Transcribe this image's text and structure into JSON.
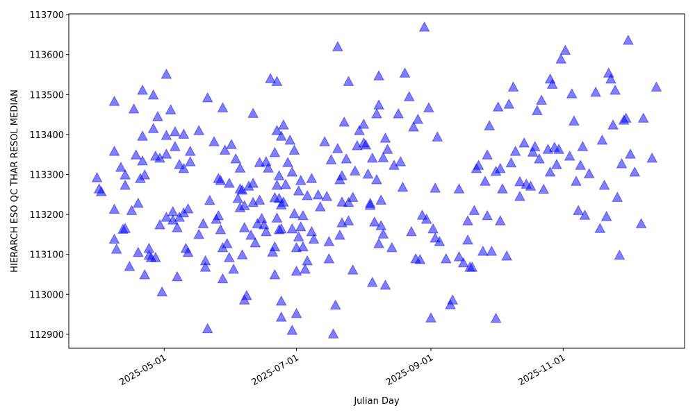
{
  "chart_data": {
    "type": "scatter",
    "xlabel": "Julian Day",
    "ylabel": "HIERARCH ESO QC THAR RESOL MEDIAN",
    "color": "#0000ff",
    "xlim": [
      "2025-03-18",
      "2025-12-27"
    ],
    "xticks": [
      "2025-05-01",
      "2025-07-01",
      "2025-09-01",
      "2025-11-01"
    ],
    "ylim": [
      112865,
      113702
    ],
    "yticks": [
      112900,
      113000,
      113100,
      113200,
      113300,
      113400,
      113500,
      113600,
      113700
    ],
    "x": [
      "2025-03-31",
      "2025-04-01",
      "2025-04-02",
      "2025-04-08",
      "2025-04-08",
      "2025-04-08",
      "2025-04-08",
      "2025-04-09",
      "2025-04-11",
      "2025-04-12",
      "2025-04-13",
      "2025-04-13",
      "2025-04-13",
      "2025-04-15",
      "2025-04-16",
      "2025-04-17",
      "2025-04-18",
      "2025-04-19",
      "2025-04-19",
      "2025-04-20",
      "2025-04-21",
      "2025-04-21",
      "2025-04-21",
      "2025-04-22",
      "2025-04-22",
      "2025-04-24",
      "2025-04-24",
      "2025-04-25",
      "2025-04-26",
      "2025-04-26",
      "2025-04-27",
      "2025-04-27",
      "2025-04-28",
      "2025-04-29",
      "2025-04-29",
      "2025-04-30",
      "2025-05-02",
      "2025-05-02",
      "2025-05-02",
      "2025-05-02",
      "2025-05-04",
      "2025-05-05",
      "2025-05-05",
      "2025-05-06",
      "2025-05-06",
      "2025-05-07",
      "2025-05-07",
      "2025-05-08",
      "2025-05-08",
      "2025-05-10",
      "2025-05-10",
      "2025-05-10",
      "2025-05-11",
      "2025-05-12",
      "2025-05-12",
      "2025-05-13",
      "2025-05-13",
      "2025-05-17",
      "2025-05-17",
      "2025-05-19",
      "2025-05-20",
      "2025-05-20",
      "2025-05-21",
      "2025-05-21",
      "2025-05-22",
      "2025-05-24",
      "2025-05-25",
      "2025-05-26",
      "2025-05-26",
      "2025-05-27",
      "2025-05-27",
      "2025-05-28",
      "2025-05-28",
      "2025-05-28",
      "2025-05-29",
      "2025-05-30",
      "2025-05-31",
      "2025-05-31",
      "2025-06-01",
      "2025-06-02",
      "2025-06-03",
      "2025-06-04",
      "2025-06-05",
      "2025-06-05",
      "2025-06-05",
      "2025-06-06",
      "2025-06-06",
      "2025-06-07",
      "2025-06-07",
      "2025-06-07",
      "2025-06-08",
      "2025-06-09",
      "2025-06-10",
      "2025-06-11",
      "2025-06-11",
      "2025-06-11",
      "2025-06-12",
      "2025-06-13",
      "2025-06-14",
      "2025-06-15",
      "2025-06-14",
      "2025-06-16",
      "2025-06-17",
      "2025-06-17",
      "2025-06-18",
      "2025-06-19",
      "2025-06-20",
      "2025-06-21",
      "2025-06-21",
      "2025-06-21",
      "2025-06-21",
      "2025-06-22",
      "2025-06-22",
      "2025-06-22",
      "2025-06-22",
      "2025-06-23",
      "2025-06-23",
      "2025-06-23",
      "2025-06-24",
      "2025-06-24",
      "2025-06-24",
      "2025-06-24",
      "2025-06-24",
      "2025-06-25",
      "2025-06-25",
      "2025-06-26",
      "2025-06-27",
      "2025-06-28",
      "2025-06-29",
      "2025-06-29",
      "2025-06-29",
      "2025-06-30",
      "2025-06-30",
      "2025-07-01",
      "2025-07-01",
      "2025-07-01",
      "2025-07-02",
      "2025-07-02",
      "2025-07-03",
      "2025-07-03",
      "2025-07-04",
      "2025-07-04",
      "2025-07-05",
      "2025-07-06",
      "2025-07-06",
      "2025-07-08",
      "2025-07-08",
      "2025-07-09",
      "2025-07-11",
      "2025-07-12",
      "2025-07-14",
      "2025-07-15",
      "2025-07-16",
      "2025-07-16",
      "2025-07-17",
      "2025-07-18",
      "2025-07-19",
      "2025-07-20",
      "2025-07-20",
      "2025-07-21",
      "2025-07-21",
      "2025-07-22",
      "2025-07-22",
      "2025-07-22",
      "2025-07-23",
      "2025-07-24",
      "2025-07-25",
      "2025-07-25",
      "2025-07-25",
      "2025-07-27",
      "2025-07-27",
      "2025-07-28",
      "2025-07-29",
      "2025-07-30",
      "2025-08-01",
      "2025-08-01",
      "2025-08-02",
      "2025-08-03",
      "2025-08-04",
      "2025-08-04",
      "2025-08-05",
      "2025-08-05",
      "2025-08-06",
      "2025-08-07",
      "2025-08-07",
      "2025-08-08",
      "2025-08-08",
      "2025-08-08",
      "2025-08-09",
      "2025-08-09",
      "2025-08-10",
      "2025-08-10",
      "2025-08-11",
      "2025-08-11",
      "2025-08-12",
      "2025-08-14",
      "2025-08-15",
      "2025-08-17",
      "2025-08-18",
      "2025-08-19",
      "2025-08-20",
      "2025-08-22",
      "2025-08-23",
      "2025-08-24",
      "2025-08-25",
      "2025-08-26",
      "2025-08-27",
      "2025-08-28",
      "2025-08-29",
      "2025-08-30",
      "2025-08-31",
      "2025-09-01",
      "2025-09-02",
      "2025-09-03",
      "2025-09-03",
      "2025-09-04",
      "2025-09-05",
      "2025-09-08",
      "2025-09-10",
      "2025-09-11",
      "2025-09-14",
      "2025-09-14",
      "2025-09-16",
      "2025-09-18",
      "2025-09-18",
      "2025-09-19",
      "2025-09-20",
      "2025-09-21",
      "2025-09-22",
      "2025-09-23",
      "2025-09-25",
      "2025-09-26",
      "2025-09-27",
      "2025-09-27",
      "2025-09-28",
      "2025-09-29",
      "2025-10-01",
      "2025-10-01",
      "2025-10-02",
      "2025-10-03",
      "2025-10-03",
      "2025-10-04",
      "2025-10-06",
      "2025-10-07",
      "2025-10-08",
      "2025-10-09",
      "2025-10-10",
      "2025-10-12",
      "2025-10-12",
      "2025-10-14",
      "2025-10-15",
      "2025-10-17",
      "2025-10-18",
      "2025-10-19",
      "2025-10-20",
      "2025-10-21",
      "2025-10-22",
      "2025-10-23",
      "2025-10-25",
      "2025-10-26",
      "2025-10-26",
      "2025-10-27",
      "2025-10-28",
      "2025-10-29",
      "2025-10-30",
      "2025-10-31",
      "2025-11-02",
      "2025-11-04",
      "2025-11-05",
      "2025-11-06",
      "2025-11-07",
      "2025-11-08",
      "2025-11-09",
      "2025-11-10",
      "2025-11-11",
      "2025-11-13",
      "2025-11-16",
      "2025-11-18",
      "2025-11-19",
      "2025-11-20",
      "2025-11-21",
      "2025-11-22",
      "2025-11-23",
      "2025-11-24",
      "2025-11-25",
      "2025-11-26",
      "2025-11-27",
      "2025-11-28",
      "2025-11-29",
      "2025-11-30",
      "2025-12-01",
      "2025-12-02",
      "2025-12-04",
      "2025-12-07",
      "2025-12-08",
      "2025-12-12",
      "2025-12-14"
    ],
    "values": [
      113292,
      113264,
      113257,
      113483,
      113358,
      113213,
      113138,
      113113,
      113318,
      113163,
      113165,
      113299,
      113273,
      113070,
      113210,
      113464,
      113349,
      113105,
      113228,
      113290,
      113334,
      113396,
      113511,
      113299,
      113049,
      113115,
      113098,
      113092,
      113415,
      113499,
      113346,
      113092,
      113445,
      113174,
      113341,
      113006,
      113551,
      113398,
      113351,
      113193,
      113462,
      113207,
      113186,
      113407,
      113370,
      113167,
      113044,
      113193,
      113325,
      113401,
      113315,
      113204,
      113115,
      113105,
      113214,
      113358,
      113332,
      113150,
      113410,
      113177,
      113084,
      113068,
      113492,
      112914,
      113235,
      113382,
      113188,
      113290,
      113197,
      113285,
      113162,
      113039,
      113467,
      113117,
      113361,
      113127,
      113278,
      113092,
      113375,
      113063,
      113339,
      113240,
      113264,
      113217,
      113316,
      113099,
      113261,
      113167,
      112986,
      113222,
      112997,
      113271,
      113148,
      113278,
      113453,
      113230,
      113129,
      113177,
      113236,
      113190,
      113330,
      113174,
      113332,
      113157,
      113316,
      113540,
      113106,
      113049,
      113242,
      113355,
      113119,
      113273,
      113533,
      113410,
      113191,
      113162,
      113240,
      113297,
      113164,
      113396,
      112943,
      113224,
      112983,
      113424,
      113231,
      113275,
      113330,
      113386,
      112910,
      113306,
      113164,
      113361,
      113202,
      113058,
      113117,
      112952,
      113259,
      113144,
      113285,
      113169,
      113119,
      113197,
      113063,
      113247,
      113084,
      113290,
      113157,
      113138,
      113249,
      113219,
      113382,
      113245,
      113089,
      113132,
      113337,
      112901,
      112973,
      113620,
      113365,
      113148,
      113287,
      113297,
      113231,
      113179,
      113431,
      113339,
      113230,
      113184,
      113533,
      113061,
      113243,
      113309,
      113372,
      113410,
      113426,
      113379,
      113374,
      113301,
      113228,
      113223,
      113341,
      113030,
      113181,
      113287,
      113452,
      113474,
      113127,
      113547,
      113236,
      113172,
      113151,
      113342,
      113023,
      113391,
      113363,
      113117,
      113323,
      113452,
      113332,
      113268,
      113554,
      113495,
      113157,
      113419,
      113089,
      113438,
      113087,
      113198,
      113669,
      113188,
      113467,
      112941,
      113164,
      113266,
      113141,
      113394,
      113132,
      113089,
      112974,
      112986,
      113264,
      113094,
      113079,
      113184,
      113136,
      113068,
      113068,
      113210,
      113315,
      113323,
      113108,
      113283,
      113197,
      113349,
      113422,
      113108,
      112940,
      113308,
      113469,
      113315,
      113184,
      113264,
      113096,
      113476,
      113329,
      113519,
      113358,
      113282,
      113245,
      113379,
      113276,
      113271,
      113356,
      113370,
      113460,
      113339,
      113486,
      113263,
      113363,
      113306,
      113539,
      113526,
      113368,
      113325,
      113363,
      113589,
      113611,
      113346,
      113502,
      113434,
      113283,
      113210,
      113323,
      113370,
      113198,
      113302,
      113506,
      113165,
      113386,
      113273,
      113195,
      113554,
      113539,
      113424,
      113511,
      113243,
      113098,
      113327,
      113436,
      113441,
      113636,
      113351,
      113306,
      113177,
      113441,
      113341,
      113519
    ]
  }
}
